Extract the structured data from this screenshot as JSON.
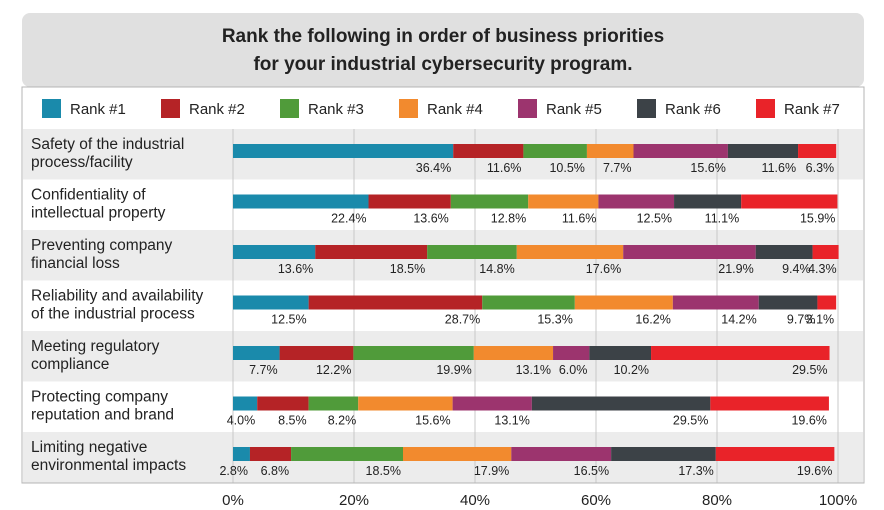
{
  "chart_data": {
    "type": "bar",
    "orientation": "horizontal",
    "stacked": true,
    "title_lines": [
      "Rank the following in order of business priorities",
      "for your industrial cybersecurity program."
    ],
    "categories": [
      [
        "Safety of the industrial",
        "process/facility"
      ],
      [
        "Confidentiality of",
        "intellectual property"
      ],
      [
        "Preventing company",
        "financial loss"
      ],
      [
        "Reliability and availability",
        "of the industrial process"
      ],
      [
        "Meeting regulatory",
        "compliance"
      ],
      [
        "Protecting company",
        "reputation and brand"
      ],
      [
        "Limiting negative",
        "environmental impacts"
      ]
    ],
    "series": [
      {
        "name": "Rank #1",
        "color": "#1a8aab",
        "values": [
          36.4,
          22.4,
          13.6,
          12.5,
          7.7,
          4.0,
          2.8
        ]
      },
      {
        "name": "Rank #2",
        "color": "#b52326",
        "values": [
          11.6,
          13.6,
          18.5,
          28.7,
          12.2,
          8.5,
          6.8
        ]
      },
      {
        "name": "Rank #3",
        "color": "#509b3a",
        "values": [
          10.5,
          12.8,
          14.8,
          15.3,
          19.9,
          8.2,
          18.5
        ]
      },
      {
        "name": "Rank #4",
        "color": "#f28a2e",
        "values": [
          7.7,
          11.6,
          17.6,
          16.2,
          13.1,
          15.6,
          17.9
        ]
      },
      {
        "name": "Rank #5",
        "color": "#9c346e",
        "values": [
          15.6,
          12.5,
          21.9,
          14.2,
          6.0,
          13.1,
          16.5
        ]
      },
      {
        "name": "Rank #6",
        "color": "#3c4247",
        "values": [
          11.6,
          11.1,
          9.4,
          9.7,
          10.2,
          29.5,
          17.3
        ]
      },
      {
        "name": "Rank #7",
        "color": "#e92329",
        "values": [
          6.3,
          15.9,
          4.3,
          3.1,
          29.5,
          19.6,
          19.6
        ]
      }
    ],
    "value_suffix": "%",
    "xlim": [
      0,
      100
    ],
    "xticks": [
      0,
      20,
      40,
      60,
      80,
      100
    ],
    "xtick_labels": [
      "0%",
      "20%",
      "40%",
      "60%",
      "80%",
      "100%"
    ],
    "grid": true,
    "legend": "top"
  },
  "colors": {
    "title_band": "#e0e0e0",
    "row_band": "#ececec",
    "grid": "#c8c8c8",
    "text": "#222222"
  }
}
